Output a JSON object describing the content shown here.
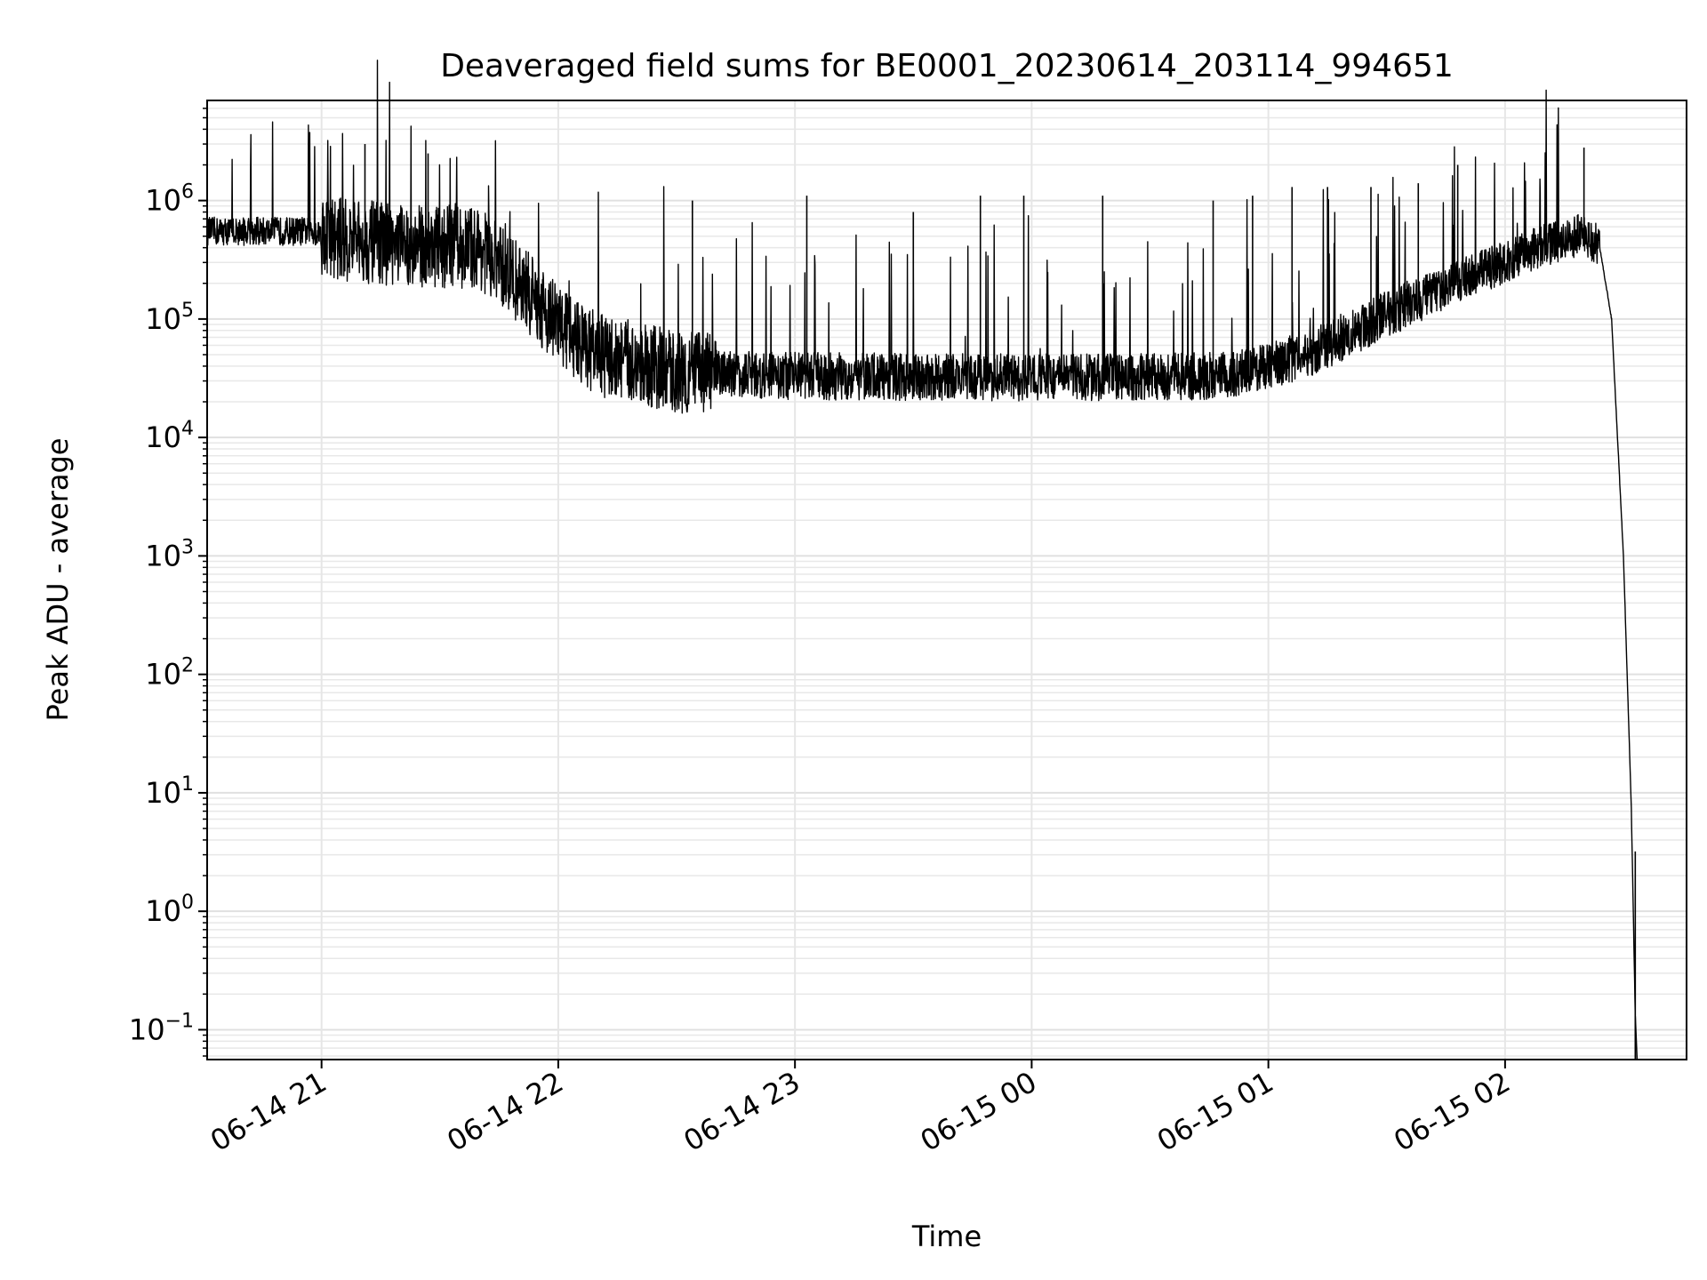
{
  "chart_data": {
    "type": "line",
    "title": "Deaveraged field sums for BE0001_20230614_203114_994651",
    "xlabel": "Time",
    "ylabel": "Peak ADU - average",
    "yscale": "log",
    "grid": true,
    "line_color": "#000000",
    "xlim": [
      "2023-06-14 20:31",
      "2023-06-15 02:46"
    ],
    "ylim": [
      0.056,
      7000000
    ],
    "x_ticks": [
      {
        "t": "2023-06-14 21:00",
        "label": "06-14 21"
      },
      {
        "t": "2023-06-14 22:00",
        "label": "06-14 22"
      },
      {
        "t": "2023-06-14 23:00",
        "label": "06-14 23"
      },
      {
        "t": "2023-06-15 00:00",
        "label": "06-15 00"
      },
      {
        "t": "2023-06-15 01:00",
        "label": "06-15 01"
      },
      {
        "t": "2023-06-15 02:00",
        "label": "06-15 02"
      }
    ],
    "y_ticks": [
      {
        "value": 0.1,
        "base": "10",
        "exp": "−1"
      },
      {
        "value": 1,
        "base": "10",
        "exp": "0"
      },
      {
        "value": 10,
        "base": "10",
        "exp": "1"
      },
      {
        "value": 100,
        "base": "10",
        "exp": "2"
      },
      {
        "value": 1000,
        "base": "10",
        "exp": "3"
      },
      {
        "value": 10000,
        "base": "10",
        "exp": "4"
      },
      {
        "value": 100000,
        "base": "10",
        "exp": "5"
      },
      {
        "value": 1000000,
        "base": "10",
        "exp": "6"
      }
    ],
    "series": [
      {
        "baseline": [
          {
            "t": "2023-06-14 20:31",
            "y": 550000
          },
          {
            "t": "2023-06-14 20:58",
            "y": 550000
          },
          {
            "t": "2023-06-14 21:05",
            "y": 470000
          },
          {
            "t": "2023-06-14 21:20",
            "y": 420000
          },
          {
            "t": "2023-06-14 21:40",
            "y": 400000
          },
          {
            "t": "2023-06-14 21:50",
            "y": 200000
          },
          {
            "t": "2023-06-14 22:00",
            "y": 90000
          },
          {
            "t": "2023-06-14 22:10",
            "y": 50000
          },
          {
            "t": "2023-06-14 22:30",
            "y": 36000
          },
          {
            "t": "2023-06-14 23:00",
            "y": 33000
          },
          {
            "t": "2023-06-15 00:00",
            "y": 32000
          },
          {
            "t": "2023-06-15 00:50",
            "y": 33000
          },
          {
            "t": "2023-06-15 01:10",
            "y": 50000
          },
          {
            "t": "2023-06-15 01:30",
            "y": 110000
          },
          {
            "t": "2023-06-15 01:50",
            "y": 220000
          },
          {
            "t": "2023-06-15 02:10",
            "y": 420000
          },
          {
            "t": "2023-06-15 02:20",
            "y": 530000
          },
          {
            "t": "2023-06-15 02:24",
            "y": 400000
          },
          {
            "t": "2023-06-15 02:27",
            "y": 100000
          },
          {
            "t": "2023-06-15 02:30",
            "y": 1000
          },
          {
            "t": "2023-06-15 02:32",
            "y": 7.5
          },
          {
            "t": "2023-06-15 02:33",
            "y": 0.13
          }
        ],
        "spikes": [
          {
            "t": "2023-06-14 21:11",
            "y": 3000000
          },
          {
            "t": "2023-06-14 21:27",
            "y": 2500000
          },
          {
            "t": "2023-06-14 22:34",
            "y": 1000000
          },
          {
            "t": "2023-06-14 23:03",
            "y": 1100000
          },
          {
            "t": "2023-06-14 23:30",
            "y": 800000
          },
          {
            "t": "2023-06-14 23:47",
            "y": 1100000
          },
          {
            "t": "2023-06-14 23:58",
            "y": 1100000
          },
          {
            "t": "2023-06-15 00:18",
            "y": 1100000
          },
          {
            "t": "2023-06-15 00:46",
            "y": 1000000
          },
          {
            "t": "2023-06-15 00:56",
            "y": 1100000
          },
          {
            "t": "2023-06-15 01:06",
            "y": 1300000
          },
          {
            "t": "2023-06-15 01:15",
            "y": 1300000
          },
          {
            "t": "2023-06-15 01:26",
            "y": 1300000
          },
          {
            "t": "2023-06-15 01:38",
            "y": 1400000
          },
          {
            "t": "2023-06-15 01:48",
            "y": 2000000
          },
          {
            "t": "2023-06-15 02:20",
            "y": 2800000
          },
          {
            "t": "2023-06-15 02:33",
            "y": 3.2
          }
        ]
      }
    ]
  }
}
